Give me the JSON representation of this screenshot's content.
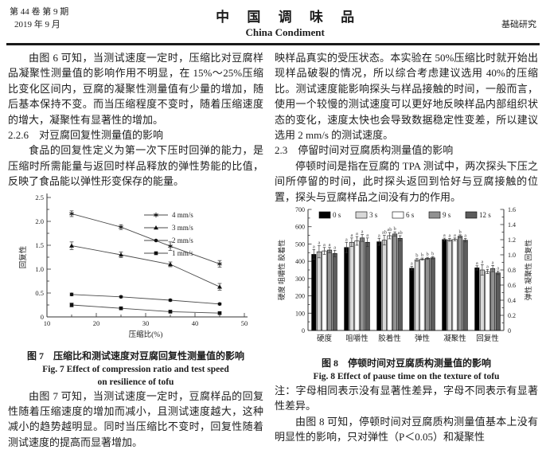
{
  "header": {
    "volume_issue": "第 44 卷 第 9 期",
    "date": "2019 年 9 月",
    "journal_cn": "中 国 调 味 品",
    "journal_en": "China Condiment",
    "section": "基础研究"
  },
  "left_column": {
    "para1": "由图 6 可知，当测试速度一定时，压缩比对豆腐样品凝聚性测量值的影响作用不明显，在 15%～25%压缩比变化区间内，豆腐的凝聚性测量值有少量的增加，随后基本保持不变。而当压缩程度不变时，随着压缩速度的增大，凝聚性有显著性的增加。",
    "heading_226": "2.2.6　对豆腐回复性测量值的影响",
    "para2": "食品的回复性定义为第一次下压时回弹的能力，是压缩时所需能量与返回时样品释放的弹性势能的比值，反映了食品能以弹性形变保存的能量。",
    "fig7_caption_cn": "图 7　压缩比和测试速度对豆腐回复性测量值的影响",
    "fig7_caption_en1": "Fig. 7 Effect of compression ratio and test speed",
    "fig7_caption_en2": "on resilience of tofu",
    "para3": "由图 7 可知，当测试速度一定时，豆腐样品的回复性随着压缩速度的增加而减小，且测试速度越大，这种减小的趋势越明显。同时当压缩比不变时，回复性随着测试速度的提高而显著增加。"
  },
  "right_column": {
    "para1": "映样品真实的受压状态。本实验在 50%压缩比时就开始出现样品破裂的情况，所以综合考虑建议选用 40%的压缩比。测试速度能影响探头与样品接触的时间，一般而言，使用一个较慢的测试速度可以更好地反映样品内部组织状态的变化，速度太快也会导致数据稳定性变差，所以建议选用 2 mm/s 的测试速度。",
    "heading_23": "2.3　停留时间对豆腐质构测量值的影响",
    "para2": "停顿时间是指在豆腐的 TPA 测试中，两次探头下压之间所停留的时间，此时探头返回到恰好与豆腐接触的位置，探头与豆腐样品之间没有力的作用。",
    "fig8_caption_cn": "图 8　停顿时间对豆腐质构测量值的影响",
    "fig8_caption_en": "Fig. 8 Effect of pause time on the texture of tofu",
    "note": "注：字母相同表示没有显著性差异，字母不同表示有显著性差异。",
    "para3": "由图 8 可知，停顿时间对豆腐质构测量值基本上没有明显性的影响，只对弹性（P＜0.05）和凝聚性"
  },
  "chart_data": [
    {
      "type": "line",
      "title": "图 7 压缩比和测试速度对豆腐回复性测量值的影响",
      "xlabel": "压缩比(%)",
      "ylabel": "回复性",
      "xlim": [
        10,
        50
      ],
      "ylim": [
        0,
        2.5
      ],
      "x": [
        15,
        25,
        35,
        45
      ],
      "legend_position": "top-right",
      "grid": false,
      "series": [
        {
          "name": "4 mm/s",
          "marker": "star",
          "values": [
            2.16,
            1.88,
            1.48,
            1.11
          ],
          "err": [
            0.06,
            0.05,
            0.09,
            0.07
          ]
        },
        {
          "name": "3 mm/s",
          "marker": "triangle",
          "values": [
            1.49,
            1.3,
            1.1,
            0.63
          ],
          "err": [
            0.08,
            0.06,
            0.05,
            0.07
          ]
        },
        {
          "name": "2 mm/s",
          "marker": "circle",
          "values": [
            0.47,
            0.42,
            0.35,
            0.27
          ],
          "err": [
            0.03,
            0.02,
            0.02,
            0.02
          ]
        },
        {
          "name": "1 mm/s",
          "marker": "square",
          "values": [
            0.25,
            0.18,
            0.11,
            0.08
          ],
          "err": [
            0.04,
            0.02,
            0.02,
            0.02
          ]
        }
      ]
    },
    {
      "type": "bar",
      "title": "图 8 停顿时间对豆腐质构测量值的影响",
      "categories": [
        "硬度",
        "咀嚼性",
        "胶着性",
        "弹性",
        "凝聚性",
        "回复性"
      ],
      "ylabel_left": "硬度 咀嚼性 胶着性",
      "ylabel_right": "弹性 凝聚性 回复性",
      "ylim_left": [
        0,
        700
      ],
      "ylim_right": [
        0,
        1.6
      ],
      "axis_note": "弹性/凝聚性/回复性 read on right axis (right = left × 1.6/700)",
      "legend_position": "top-inside",
      "series": [
        {
          "name": "0 s",
          "color": "#000000",
          "values": [
            440,
            480,
            513,
            360,
            526,
            362
          ]
        },
        {
          "name": "3 s",
          "color": "#d9d9d9",
          "values": [
            455,
            510,
            522,
            408,
            524,
            350
          ]
        },
        {
          "name": "6 s",
          "color": "#ffffff",
          "values": [
            460,
            518,
            548,
            413,
            527,
            341
          ]
        },
        {
          "name": "9 s",
          "color": "#919191",
          "values": [
            465,
            535,
            558,
            417,
            545,
            358
          ]
        },
        {
          "name": "12 s",
          "color": "#5c5c5c",
          "values": [
            445,
            510,
            533,
            420,
            522,
            333
          ]
        }
      ],
      "letters": [
        [
          "a",
          "a",
          "a",
          "a",
          "a"
        ],
        [
          "a",
          "a",
          "a",
          "a",
          "a"
        ],
        [
          "a",
          "ab",
          "ab",
          "b",
          "ab"
        ],
        [
          "a",
          "b",
          "b",
          "b",
          "b"
        ],
        [
          "a",
          "a",
          "a",
          "b",
          "a"
        ],
        [
          "a",
          "a",
          "a",
          "a",
          "a"
        ]
      ],
      "errors": [
        [
          28,
          35,
          20,
          15,
          18
        ],
        [
          30,
          25,
          25,
          20,
          25
        ],
        [
          20,
          28,
          18,
          12,
          15
        ],
        [
          10,
          8,
          6,
          6,
          6
        ],
        [
          8,
          8,
          8,
          8,
          10
        ],
        [
          12,
          30,
          12,
          18,
          10
        ]
      ]
    }
  ]
}
